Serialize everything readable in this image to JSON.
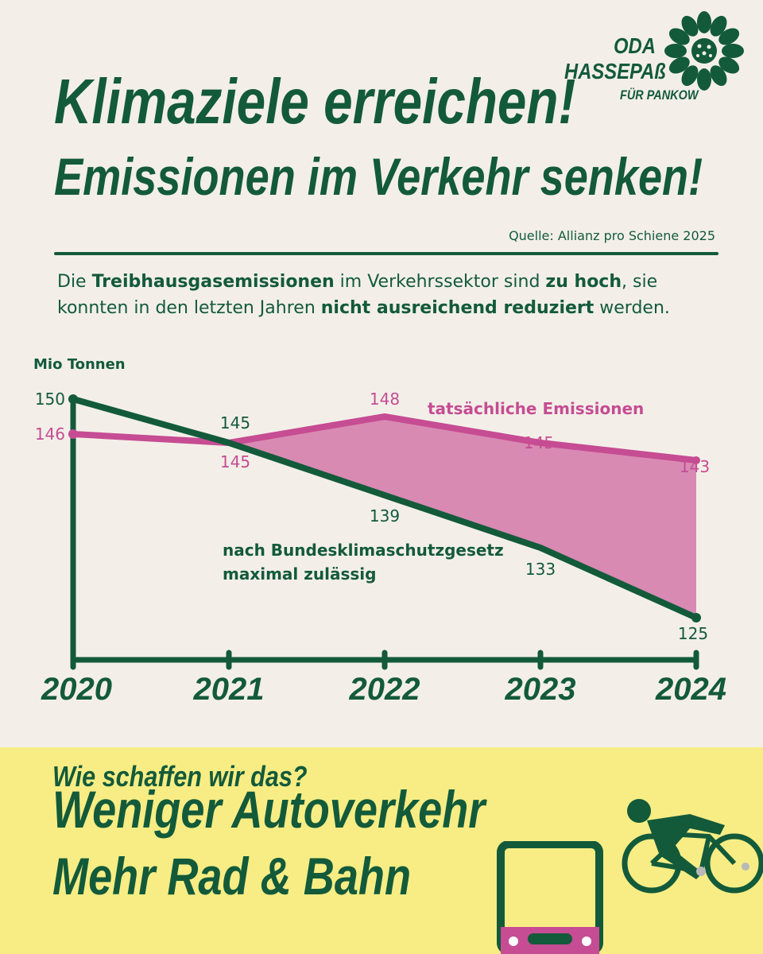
{
  "logo": {
    "line1": "ODA",
    "line2": "HASSEPAß",
    "line3": "FÜR PANKOW"
  },
  "headline": {
    "line1": "Klimaziele erreichen!",
    "line2": "Emissionen im Verkehr senken!"
  },
  "source": "Quelle: Allianz pro Schiene 2025",
  "lead": {
    "t1": "Die ",
    "b1": "Treibhausgasemissionen",
    "t2": " im Verkehrssektor sind ",
    "b2": "zu hoch",
    "t3": ", sie konnten in den letzten Jahren ",
    "b3": "nicht ausreichend reduziert",
    "t4": " werden."
  },
  "chart_data": {
    "type": "line",
    "ylabel": "Mio Tonnen",
    "x": [
      "2020",
      "2021",
      "2022",
      "2023",
      "2024"
    ],
    "series": [
      {
        "name": "tatsächliche Emissionen",
        "values": [
          146,
          145,
          148,
          145,
          143
        ],
        "color": "#c64c93"
      },
      {
        "name": "nach Bundesklimaschutzgesetz maximal zulässig",
        "values": [
          150,
          145,
          139,
          133,
          125
        ],
        "color": "#135a3a"
      }
    ],
    "shaded_gap": {
      "from": "2021",
      "to": "2024",
      "color": "#d88ab3"
    },
    "annotation_lines": {
      "actual": [
        "tatsächliche Emissionen"
      ],
      "limit": [
        "nach Bundesklimaschutzgesetz",
        "maximal zulässig"
      ]
    },
    "ylim": [
      120,
      151
    ]
  },
  "bottom": {
    "question": "Wie schaffen wir das?",
    "line1": "Weniger Autoverkehr",
    "line2": "Mehr Rad & Bahn"
  },
  "colors": {
    "green": "#135a3a",
    "magenta": "#c64c93",
    "pink_fill": "#d88ab3",
    "background": "#f3efe8",
    "yellow": "#f7ed84"
  },
  "icons": [
    "sunflower-icon",
    "tram-icon",
    "cyclist-icon"
  ]
}
